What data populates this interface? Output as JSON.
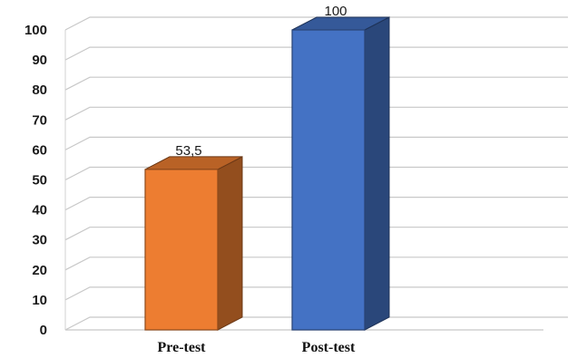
{
  "chart_data": {
    "type": "bar",
    "style": "3d-column",
    "categories": [
      "Pre-test",
      "Post-test"
    ],
    "values": [
      53.5,
      100
    ],
    "data_labels": [
      "53,5",
      "100"
    ],
    "ylim": [
      0,
      100
    ],
    "yticks": [
      "0",
      "10",
      "20",
      "30",
      "40",
      "50",
      "60",
      "70",
      "80",
      "90",
      "100"
    ],
    "grid": true,
    "legend": "none",
    "colors": [
      "#ED7D31",
      "#4472C4"
    ]
  }
}
